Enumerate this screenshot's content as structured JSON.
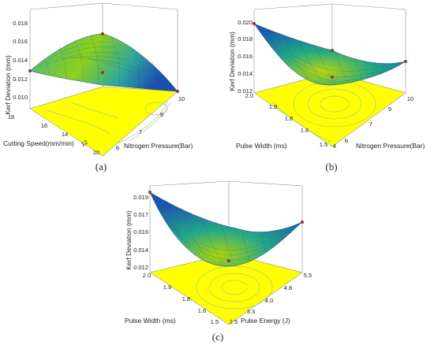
{
  "chart_data": [
    {
      "type": "surface",
      "panel_label": "(a)",
      "xlabel": "Cutting Speed(mm/min)",
      "ylabel": "Nitrogen Pressure(Bar)",
      "zlabel": "Kerf Deviation (mm)",
      "x_ticks": [
        "10",
        "12",
        "14",
        "16",
        "18"
      ],
      "y_ticks": [
        "6",
        "7",
        "9",
        "10"
      ],
      "z_ticks": [
        "0.010",
        "0.012",
        "0.014",
        "0.016",
        "0.018"
      ],
      "xlim": [
        10,
        18
      ],
      "ylim": [
        6,
        10
      ],
      "zlim": [
        0.01,
        0.018
      ],
      "surface_points": [
        {
          "cutting_speed": 18,
          "nitrogen_pressure": 6,
          "kerf_deviation": 0.0132
        },
        {
          "cutting_speed": 10,
          "nitrogen_pressure": 6,
          "kerf_deviation": 0.0146
        },
        {
          "cutting_speed": 10,
          "nitrogen_pressure": 10,
          "kerf_deviation": 0.0112
        },
        {
          "cutting_speed": 18,
          "nitrogen_pressure": 10,
          "kerf_deviation": 0.0161
        }
      ],
      "surface_max": 0.0163,
      "contour_floor": true,
      "floor_color": "#ffff00"
    },
    {
      "type": "surface",
      "panel_label": "(b)",
      "xlabel": "Pulse Width (ms)",
      "ylabel": "Nitrogen Pressure(Bar)",
      "zlabel": "Kerf Deviation (mm)",
      "x_ticks": [
        "1.5",
        "1.6",
        "1.8",
        "1.9",
        "2.0"
      ],
      "y_ticks": [
        "4",
        "6",
        "7",
        "9",
        "10"
      ],
      "z_ticks": [
        "0.012",
        "0.014",
        "0.016",
        "0.018",
        "0.020"
      ],
      "xlim": [
        1.5,
        2.0
      ],
      "ylim": [
        4,
        10
      ],
      "zlim": [
        0.011,
        0.02
      ],
      "surface_points": [
        {
          "pulse_width": 2.0,
          "nitrogen_pressure": 4,
          "kerf_deviation": 0.02
        },
        {
          "pulse_width": 1.5,
          "nitrogen_pressure": 4,
          "kerf_deviation": 0.0172
        },
        {
          "pulse_width": 1.5,
          "nitrogen_pressure": 10,
          "kerf_deviation": 0.016
        },
        {
          "pulse_width": 2.0,
          "nitrogen_pressure": 10,
          "kerf_deviation": 0.0176
        }
      ],
      "surface_min": 0.012,
      "contour_floor": true,
      "floor_color": "#ffff00"
    },
    {
      "type": "surface",
      "panel_label": "(c)",
      "xlabel": "Pulse Width (ms)",
      "ylabel": "Pulse Energy (J)",
      "zlabel": "Kerf Deviation (mm)",
      "x_ticks": [
        "1.5",
        "1.6",
        "1.8",
        "1.9",
        "2.0"
      ],
      "y_ticks": [
        "2.5",
        "3.3",
        "4.0",
        "4.8",
        "5.5"
      ],
      "z_ticks": [
        "0.012",
        "0.014",
        "0.016",
        "0.017",
        "0.019"
      ],
      "xlim": [
        1.5,
        2.0
      ],
      "ylim": [
        2.5,
        5.5
      ],
      "zlim": [
        0.011,
        0.019
      ],
      "surface_points": [
        {
          "pulse_width": 2.0,
          "pulse_energy": 2.5,
          "kerf_deviation": 0.0192
        },
        {
          "pulse_width": 1.5,
          "pulse_energy": 2.5,
          "kerf_deviation": 0.0163
        },
        {
          "pulse_width": 1.5,
          "pulse_energy": 5.5,
          "kerf_deviation": 0.0152
        },
        {
          "pulse_width": 2.0,
          "pulse_energy": 5.5,
          "kerf_deviation": 0.017
        }
      ],
      "surface_min": 0.012,
      "contour_floor": true,
      "floor_color": "#ffff00"
    }
  ],
  "colors": {
    "surface_low": "#1a5fb4",
    "surface_mid": "#1ea88c",
    "surface_high": "#8ed01c",
    "floor": "#ffff00",
    "contour": "#a9c3a0",
    "grid": "#8e8e8e",
    "design_point": "#8b3a2a"
  }
}
